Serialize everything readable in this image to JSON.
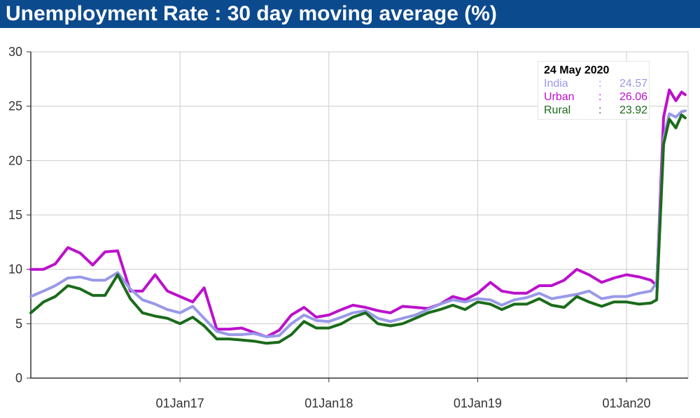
{
  "title": "Unemployment Rate : 30 day moving average (%)",
  "tooltip": {
    "date": "24 May 2020",
    "separator": ":",
    "rows": [
      {
        "name": "India",
        "value": "24.57",
        "color": "#9999e8"
      },
      {
        "name": "Urban",
        "value": "26.06",
        "color": "#bb11cc"
      },
      {
        "name": "Rural",
        "value": "23.92",
        "color": "#1a6b1a"
      }
    ]
  },
  "chart_data": {
    "type": "line",
    "title": "Unemployment Rate : 30 day moving average (%)",
    "xlabel": "",
    "ylabel": "",
    "ylim": [
      0,
      30
    ],
    "xlim": [
      "2016-01-01",
      "2020-05-31"
    ],
    "yticks": [
      "0",
      "5",
      "10",
      "15",
      "20",
      "25",
      "30"
    ],
    "xticks": [
      {
        "label": "01Jan17",
        "date": "2017-01-01"
      },
      {
        "label": "01Jan18",
        "date": "2018-01-01"
      },
      {
        "label": "01Jan19",
        "date": "2019-01-01"
      },
      {
        "label": "01Jan20",
        "date": "2020-01-01"
      }
    ],
    "grid": true,
    "legend": "none",
    "x": [
      "2016-01-01",
      "2016-02-01",
      "2016-03-01",
      "2016-04-01",
      "2016-05-01",
      "2016-06-01",
      "2016-07-01",
      "2016-08-01",
      "2016-09-01",
      "2016-10-01",
      "2016-11-01",
      "2016-12-01",
      "2017-01-01",
      "2017-02-01",
      "2017-03-01",
      "2017-04-01",
      "2017-05-01",
      "2017-06-01",
      "2017-07-01",
      "2017-08-01",
      "2017-09-01",
      "2017-10-01",
      "2017-11-01",
      "2017-12-01",
      "2018-01-01",
      "2018-02-01",
      "2018-03-01",
      "2018-04-01",
      "2018-05-01",
      "2018-06-01",
      "2018-07-01",
      "2018-08-01",
      "2018-09-01",
      "2018-10-01",
      "2018-11-01",
      "2018-12-01",
      "2019-01-01",
      "2019-02-01",
      "2019-03-01",
      "2019-04-01",
      "2019-05-01",
      "2019-06-01",
      "2019-07-01",
      "2019-08-01",
      "2019-09-01",
      "2019-10-01",
      "2019-11-01",
      "2019-12-01",
      "2020-01-01",
      "2020-02-01",
      "2020-03-01",
      "2020-03-15",
      "2020-04-01",
      "2020-04-15",
      "2020-05-01",
      "2020-05-15",
      "2020-05-24"
    ],
    "series": [
      {
        "name": "India",
        "color": "#9999e8",
        "values": [
          7.5,
          8.0,
          8.5,
          9.2,
          9.3,
          9.0,
          9.0,
          9.7,
          8.2,
          7.2,
          6.8,
          6.3,
          6.0,
          6.6,
          5.5,
          4.3,
          4.0,
          4.0,
          4.1,
          3.8,
          3.9,
          5.0,
          5.8,
          5.3,
          5.2,
          5.6,
          6.0,
          6.2,
          5.5,
          5.2,
          5.5,
          5.8,
          6.3,
          6.8,
          7.2,
          7.0,
          7.3,
          7.2,
          6.7,
          7.2,
          7.4,
          7.8,
          7.3,
          7.5,
          7.7,
          8.0,
          7.3,
          7.5,
          7.5,
          7.8,
          8.0,
          8.8,
          22.0,
          24.3,
          24.0,
          24.5,
          24.57
        ]
      },
      {
        "name": "Urban",
        "color": "#bb11cc",
        "values": [
          10.0,
          10.0,
          10.5,
          12.0,
          11.5,
          10.4,
          11.6,
          11.7,
          8.0,
          8.0,
          9.5,
          8.0,
          7.5,
          7.0,
          8.3,
          4.5,
          4.5,
          4.6,
          4.2,
          3.8,
          4.4,
          5.8,
          6.5,
          5.6,
          5.8,
          6.3,
          6.7,
          6.5,
          6.2,
          6.0,
          6.6,
          6.5,
          6.4,
          6.8,
          7.5,
          7.2,
          7.8,
          8.8,
          8.0,
          7.8,
          7.8,
          8.5,
          8.5,
          9.0,
          10.0,
          9.5,
          8.8,
          9.2,
          9.5,
          9.3,
          9.0,
          8.5,
          24.0,
          26.5,
          25.5,
          26.3,
          26.06
        ]
      },
      {
        "name": "Rural",
        "color": "#1a6b1a",
        "values": [
          6.0,
          7.0,
          7.5,
          8.5,
          8.2,
          7.6,
          7.6,
          9.5,
          7.3,
          6.0,
          5.7,
          5.5,
          5.0,
          5.6,
          4.8,
          3.6,
          3.6,
          3.5,
          3.4,
          3.2,
          3.3,
          4.0,
          5.2,
          4.6,
          4.6,
          5.0,
          5.6,
          6.0,
          5.0,
          4.8,
          5.0,
          5.5,
          6.0,
          6.3,
          6.7,
          6.3,
          7.0,
          6.8,
          6.3,
          6.8,
          6.8,
          7.3,
          6.7,
          6.5,
          7.5,
          7.0,
          6.6,
          7.0,
          7.0,
          6.8,
          6.9,
          7.2,
          21.5,
          23.8,
          23.0,
          24.2,
          23.92
        ]
      }
    ]
  }
}
